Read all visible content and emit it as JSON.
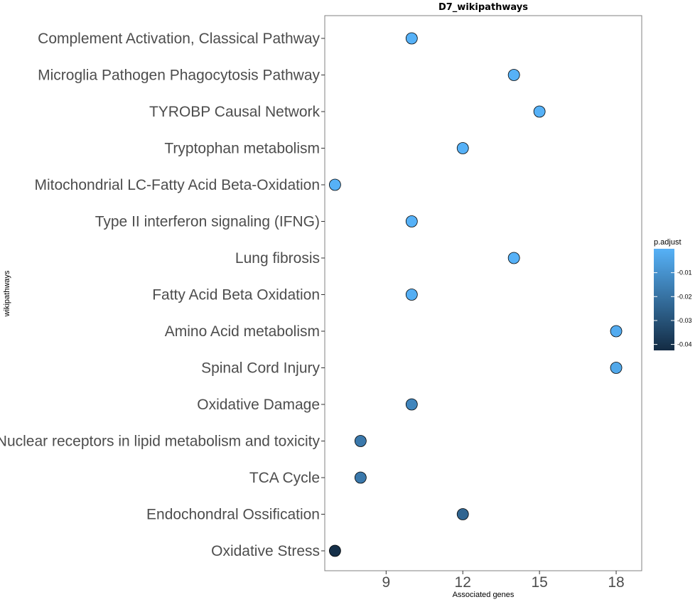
{
  "chart_data": {
    "type": "scatter",
    "title": "D7_wikipathways",
    "xlabel": "Associated genes",
    "ylabel": "wikipathways",
    "xlim": [
      6.6,
      19.0
    ],
    "x_ticks": [
      9,
      12,
      15,
      18
    ],
    "grid": false,
    "legend_position": "right",
    "legend": {
      "title": "p.adjust",
      "range": [
        -0.0425,
        0.0
      ],
      "ticks": [
        -0.01,
        -0.02,
        -0.03,
        -0.04
      ],
      "color_low": "#132B43",
      "color_high": "#56B1F7"
    },
    "points": [
      {
        "category": "Complement Activation, Classical Pathway",
        "x": 10,
        "p_adjust": 0.0
      },
      {
        "category": "Microglia Pathogen Phagocytosis Pathway",
        "x": 14,
        "p_adjust": 0.0
      },
      {
        "category": "TYROBP Causal Network",
        "x": 15,
        "p_adjust": 0.0
      },
      {
        "category": "Tryptophan metabolism",
        "x": 12,
        "p_adjust": 0.0
      },
      {
        "category": "Mitochondrial LC-Fatty Acid Beta-Oxidation",
        "x": 7,
        "p_adjust": 0.0
      },
      {
        "category": "Type II interferon signaling (IFNG)",
        "x": 10,
        "p_adjust": 0.0
      },
      {
        "category": "Lung fibrosis",
        "x": 14,
        "p_adjust": 0.0
      },
      {
        "category": "Fatty Acid Beta Oxidation",
        "x": 10,
        "p_adjust": -0.001
      },
      {
        "category": "Amino Acid metabolism",
        "x": 18,
        "p_adjust": -0.002
      },
      {
        "category": "Spinal Cord Injury",
        "x": 18,
        "p_adjust": -0.003
      },
      {
        "category": "Oxidative Damage",
        "x": 10,
        "p_adjust": -0.014
      },
      {
        "category": "Nuclear receptors in lipid metabolism and toxicity",
        "x": 8,
        "p_adjust": -0.018
      },
      {
        "category": "TCA Cycle",
        "x": 8,
        "p_adjust": -0.018
      },
      {
        "category": "Endochondral Ossification",
        "x": 12,
        "p_adjust": -0.024
      },
      {
        "category": "Oxidative Stress",
        "x": 7,
        "p_adjust": -0.041
      }
    ]
  }
}
